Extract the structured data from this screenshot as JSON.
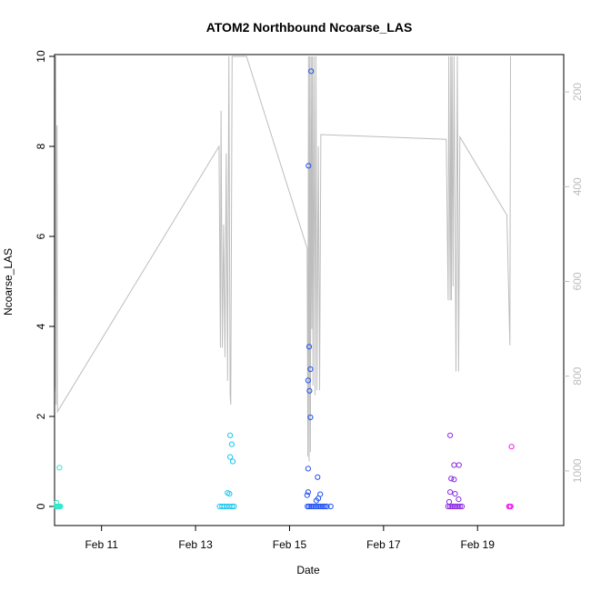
{
  "chart_data": {
    "type": "scatter",
    "title": "ATOM2 Northbound Ncoarse_LAS",
    "xlabel": "Date",
    "ylabel": "Ncoarse_LAS",
    "ylim": [
      0,
      10
    ],
    "yticks": [
      "0",
      "2",
      "4",
      "6",
      "8",
      "10"
    ],
    "xlim_days": [
      "Feb 10 00:00",
      "Feb 20 20:00"
    ],
    "xticks": [
      "Feb 11",
      "Feb 13",
      "Feb 15",
      "Feb 17",
      "Feb 19"
    ],
    "secondary_axis": {
      "side": "right",
      "reversed": true,
      "ylim": [
        1075,
        125
      ],
      "ticks": [
        "200",
        "400",
        "600",
        "800",
        "1000"
      ],
      "color": "#bdbdbd"
    },
    "grid": false,
    "legend": "none",
    "colors": {
      "line": "#bdbdbd",
      "cluster1": "#2ee8c8",
      "cluster2": "#1cc6ee",
      "cluster3": "#2050f0",
      "cluster4": "#8a2be2",
      "cluster5": "#ee22ee"
    },
    "series": [
      {
        "color_key": "cluster1",
        "points": [
          [
            "Feb 10 00:50",
            0.0
          ],
          [
            "Feb 10 01:10",
            0.0
          ],
          [
            "Feb 10 01:40",
            0.0
          ],
          [
            "Feb 10 02:00",
            0.0
          ],
          [
            "Feb 10 02:30",
            0.0
          ],
          [
            "Feb 10 03:00",
            0.0
          ],
          [
            "Feb 10 01:00",
            0.08
          ],
          [
            "Feb 10 02:30",
            0.86
          ]
        ]
      },
      {
        "color_key": "cluster2",
        "points": [
          [
            "Feb 13 12:20",
            0.0
          ],
          [
            "Feb 13 13:30",
            0.0
          ],
          [
            "Feb 13 14:40",
            0.0
          ],
          [
            "Feb 13 16:00",
            0.0
          ],
          [
            "Feb 13 17:20",
            0.0
          ],
          [
            "Feb 13 18:40",
            0.0
          ],
          [
            "Feb 13 19:40",
            0.0
          ],
          [
            "Feb 13 16:20",
            0.3
          ],
          [
            "Feb 13 17:20",
            0.28
          ],
          [
            "Feb 13 17:40",
            1.58
          ],
          [
            "Feb 13 17:40",
            1.1
          ],
          [
            "Feb 13 18:30",
            1.38
          ],
          [
            "Feb 13 19:00",
            1.0
          ]
        ]
      },
      {
        "color_key": "cluster3",
        "points": [
          [
            "Feb 15 09:10",
            0.0
          ],
          [
            "Feb 15 10:00",
            0.0
          ],
          [
            "Feb 15 11:00",
            0.0
          ],
          [
            "Feb 15 12:00",
            0.0
          ],
          [
            "Feb 15 13:00",
            0.0
          ],
          [
            "Feb 15 14:00",
            0.0
          ],
          [
            "Feb 15 15:00",
            0.0
          ],
          [
            "Feb 15 16:00",
            0.0
          ],
          [
            "Feb 15 17:00",
            0.0
          ],
          [
            "Feb 15 18:00",
            0.0
          ],
          [
            "Feb 15 19:00",
            0.0
          ],
          [
            "Feb 15 21:00",
            0.0
          ],
          [
            "Feb 15 09:00",
            0.25
          ],
          [
            "Feb 15 09:30",
            0.32
          ],
          [
            "Feb 15 09:30",
            0.84
          ],
          [
            "Feb 15 09:40",
            7.57
          ],
          [
            "Feb 15 10:00",
            3.55
          ],
          [
            "Feb 15 10:40",
            3.05
          ],
          [
            "Feb 15 09:30",
            2.8
          ],
          [
            "Feb 15 10:10",
            2.57
          ],
          [
            "Feb 15 10:40",
            1.98
          ],
          [
            "Feb 15 11:00",
            9.67
          ],
          [
            "Feb 15 14:20",
            0.65
          ],
          [
            "Feb 15 13:40",
            0.13
          ],
          [
            "Feb 15 14:40",
            0.18
          ],
          [
            "Feb 15 15:40",
            0.27
          ]
        ]
      },
      {
        "color_key": "cluster4",
        "points": [
          [
            "Feb 18 09:00",
            0.0
          ],
          [
            "Feb 18 10:00",
            0.0
          ],
          [
            "Feb 18 11:00",
            0.0
          ],
          [
            "Feb 18 12:00",
            0.0
          ],
          [
            "Feb 18 13:00",
            0.0
          ],
          [
            "Feb 18 14:00",
            0.0
          ],
          [
            "Feb 18 15:00",
            0.0
          ],
          [
            "Feb 18 16:00",
            0.0
          ],
          [
            "Feb 18 09:30",
            0.1
          ],
          [
            "Feb 18 10:00",
            0.32
          ],
          [
            "Feb 18 10:30",
            0.62
          ],
          [
            "Feb 18 10:00",
            1.58
          ],
          [
            "Feb 18 12:00",
            0.92
          ],
          [
            "Feb 18 12:00",
            0.6
          ],
          [
            "Feb 18 12:30",
            0.28
          ],
          [
            "Feb 18 14:30",
            0.92
          ],
          [
            "Feb 18 14:20",
            0.16
          ]
        ]
      },
      {
        "color_key": "cluster5",
        "points": [
          [
            "Feb 19 16:00",
            0.0
          ],
          [
            "Feb 19 16:30",
            0.0
          ],
          [
            "Feb 19 17:00",
            0.0
          ],
          [
            "Feb 19 17:20",
            1.33
          ]
        ]
      }
    ],
    "secondary_line": [
      [
        "Feb 10 00:00",
        838
      ],
      [
        "Feb 10 00:15",
        820
      ],
      [
        "Feb 10 00:25",
        125
      ],
      [
        "Feb 10 00:40",
        125
      ],
      [
        "Feb 10 00:50",
        860
      ],
      [
        "Feb 10 01:00",
        285
      ],
      [
        "Feb 10 01:15",
        270
      ],
      [
        "Feb 10 01:30",
        875
      ],
      [
        "Feb 13 12:00",
        315
      ],
      [
        "Feb 13 12:40",
        740
      ],
      [
        "Feb 13 13:00",
        240
      ],
      [
        "Feb 13 13:40",
        740
      ],
      [
        "Feb 13 14:20",
        480
      ],
      [
        "Feb 13 15:00",
        760
      ],
      [
        "Feb 13 15:40",
        330
      ],
      [
        "Feb 13 16:20",
        810
      ],
      [
        "Feb 13 17:00",
        125
      ],
      [
        "Feb 13 17:40",
        840
      ],
      [
        "Feb 13 18:00",
        860
      ],
      [
        "Feb 13 18:40",
        125
      ],
      [
        "Feb 14 02:00",
        125
      ],
      [
        "Feb 15 09:00",
        530
      ],
      [
        "Feb 15 09:20",
        970
      ],
      [
        "Feb 15 09:40",
        125
      ],
      [
        "Feb 15 10:00",
        980
      ],
      [
        "Feb 15 10:20",
        125
      ],
      [
        "Feb 15 10:40",
        960
      ],
      [
        "Feb 15 11:00",
        125
      ],
      [
        "Feb 15 11:20",
        700
      ],
      [
        "Feb 15 11:40",
        125
      ],
      [
        "Feb 15 12:00",
        820
      ],
      [
        "Feb 15 12:30",
        125
      ],
      [
        "Feb 15 13:00",
        840
      ],
      [
        "Feb 15 13:30",
        125
      ],
      [
        "Feb 15 14:00",
        830
      ],
      [
        "Feb 15 14:40",
        315
      ],
      [
        "Feb 15 15:20",
        830
      ],
      [
        "Feb 15 16:00",
        290
      ],
      [
        "Feb 18 08:00",
        300
      ],
      [
        "Feb 18 09:00",
        640
      ],
      [
        "Feb 18 09:20",
        125
      ],
      [
        "Feb 18 10:00",
        640
      ],
      [
        "Feb 18 10:20",
        125
      ],
      [
        "Feb 18 10:40",
        640
      ],
      [
        "Feb 18 11:00",
        125
      ],
      [
        "Feb 18 11:30",
        610
      ],
      [
        "Feb 18 12:00",
        125
      ],
      [
        "Feb 18 13:00",
        790
      ],
      [
        "Feb 18 13:40",
        125
      ],
      [
        "Feb 18 14:20",
        790
      ],
      [
        "Feb 18 15:00",
        295
      ],
      [
        "Feb 19 15:00",
        460
      ],
      [
        "Feb 19 16:30",
        735
      ],
      [
        "Feb 19 16:50",
        125
      ]
    ]
  }
}
